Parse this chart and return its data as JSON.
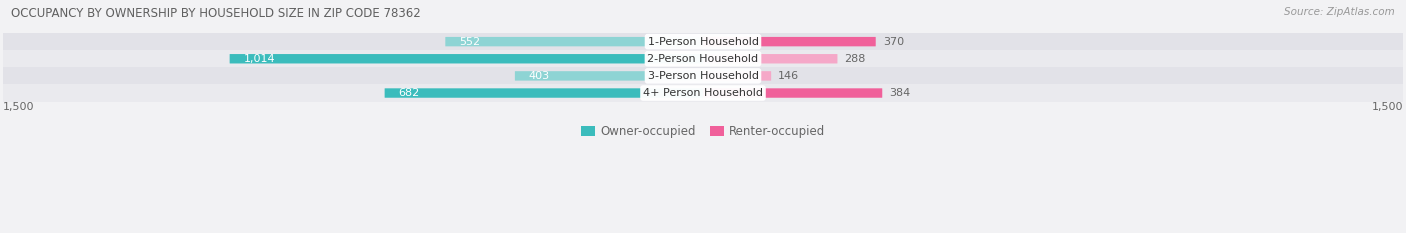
{
  "title": "OCCUPANCY BY OWNERSHIP BY HOUSEHOLD SIZE IN ZIP CODE 78362",
  "source": "Source: ZipAtlas.com",
  "categories": [
    "1-Person Household",
    "2-Person Household",
    "3-Person Household",
    "4+ Person Household"
  ],
  "owner_values": [
    552,
    1014,
    403,
    682
  ],
  "renter_values": [
    370,
    288,
    146,
    384
  ],
  "owner_color_dark": "#3BBCBC",
  "owner_color_light": "#8ED4D4",
  "renter_color_dark": "#F0609A",
  "renter_color_light": "#F5A8C8",
  "axis_max": 1500,
  "bg_color": "#F2F2F4",
  "row_colors": [
    "#EAEAEE",
    "#E2E2E8"
  ],
  "bar_height": 0.55,
  "title_color": "#606060",
  "label_color": "#666666",
  "source_color": "#999999",
  "value_inside_color": "#FFFFFF",
  "value_outside_color": "#666666"
}
